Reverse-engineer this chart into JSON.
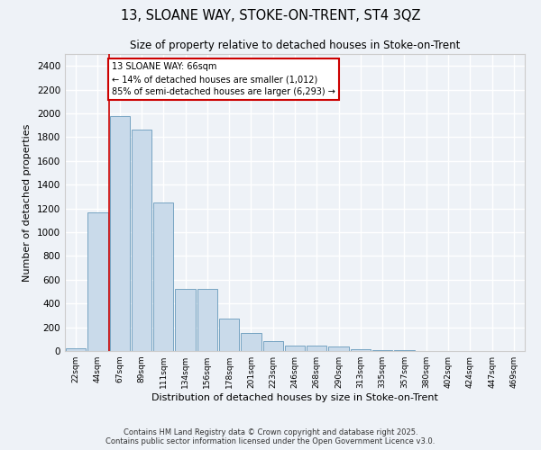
{
  "title_line1": "13, SLOANE WAY, STOKE-ON-TRENT, ST4 3QZ",
  "title_line2": "Size of property relative to detached houses in Stoke-on-Trent",
  "xlabel": "Distribution of detached houses by size in Stoke-on-Trent",
  "ylabel": "Number of detached properties",
  "categories": [
    "22sqm",
    "44sqm",
    "67sqm",
    "89sqm",
    "111sqm",
    "134sqm",
    "156sqm",
    "178sqm",
    "201sqm",
    "223sqm",
    "246sqm",
    "268sqm",
    "290sqm",
    "313sqm",
    "335sqm",
    "357sqm",
    "380sqm",
    "402sqm",
    "424sqm",
    "447sqm",
    "469sqm"
  ],
  "values": [
    25,
    1170,
    1980,
    1860,
    1250,
    520,
    520,
    275,
    155,
    85,
    45,
    45,
    35,
    15,
    8,
    5,
    3,
    2,
    2,
    1,
    1
  ],
  "bar_color": "#c9daea",
  "bar_edge_color": "#6699bb",
  "annotation_text": "13 SLOANE WAY: 66sqm\n← 14% of detached houses are smaller (1,012)\n85% of semi-detached houses are larger (6,293) →",
  "annotation_box_color": "#ffffff",
  "annotation_box_edge": "#cc0000",
  "vline_color": "#cc0000",
  "vline_x_index": 2,
  "ylim": [
    0,
    2500
  ],
  "yticks": [
    0,
    200,
    400,
    600,
    800,
    1000,
    1200,
    1400,
    1600,
    1800,
    2000,
    2200,
    2400
  ],
  "background_color": "#eef2f7",
  "grid_color": "#ffffff",
  "footer_line1": "Contains HM Land Registry data © Crown copyright and database right 2025.",
  "footer_line2": "Contains public sector information licensed under the Open Government Licence v3.0."
}
